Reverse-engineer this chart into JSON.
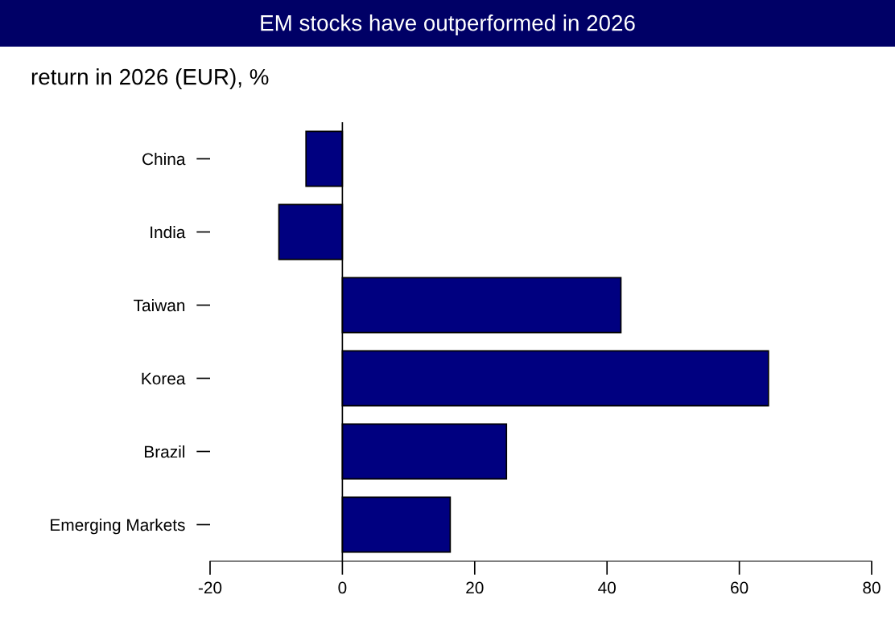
{
  "chart_data": {
    "type": "bar",
    "orientation": "horizontal",
    "title": "EM stocks have outperformed in 2026",
    "subtitle": "return in 2026 (EUR), %",
    "categories": [
      "China",
      "India",
      "Taiwan",
      "Korea",
      "Brazil",
      "Emerging Markets"
    ],
    "values": [
      -5.5,
      -9.6,
      42.1,
      64.4,
      24.8,
      16.3
    ],
    "color": "#000080",
    "xlim": [
      -20,
      80
    ],
    "xticks": [
      -20,
      0,
      20,
      40,
      60,
      80
    ]
  }
}
